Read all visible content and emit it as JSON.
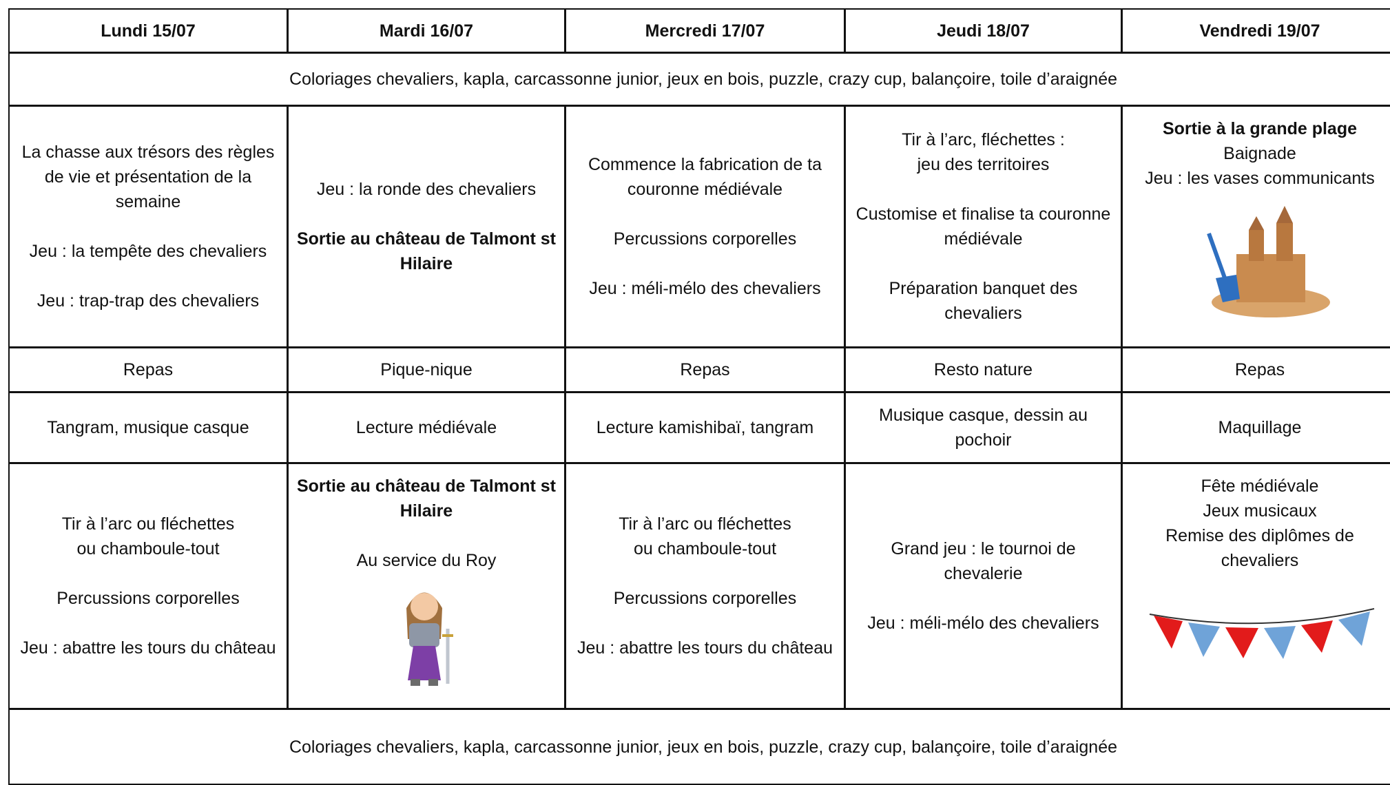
{
  "header": {
    "days": [
      "Lundi 15/07",
      "Mardi 16/07",
      "Mercredi 17/07",
      "Jeudi 18/07",
      "Vendredi 19/07"
    ]
  },
  "table": {
    "rows": [
      [
        [
          [
            "Coloriages chevaliers, kapla, carcassonne junior, jeux en bois, puzzle, crazy cup, balançoire, toile d’araignée"
          ]
        ]
      ],
      [
        [
          [
            "La chasse aux trésors des règles de vie et présentation de la semaine"
          ],
          [
            "Jeu : la tempête des chevaliers"
          ],
          [
            "Jeu : trap-trap des chevaliers"
          ]
        ],
        [
          [
            "Jeu : la ronde des chevaliers"
          ],
          [
            {
              "text": "Sortie au château de Talmont st Hilaire",
              "bold": true
            }
          ]
        ],
        [
          [
            "Commence la fabrication de ta couronne médiévale"
          ],
          [
            "Percussions corporelles"
          ],
          [
            "Jeu : méli-mélo des chevaliers"
          ]
        ],
        [
          [
            "Tir à l’arc, fléchettes :",
            "jeu des territoires"
          ],
          [
            "Customise et finalise ta couronne médiévale"
          ],
          [
            "Préparation banquet des chevaliers"
          ]
        ],
        [
          [
            {
              "text": "Sortie à la grande plage",
              "bold": true
            },
            "Baignade",
            "Jeu : les vases communicants"
          ]
        ]
      ],
      [
        [
          [
            "Repas"
          ]
        ],
        [
          [
            "Pique-nique"
          ]
        ],
        [
          [
            "Repas"
          ]
        ],
        [
          [
            "Resto nature"
          ]
        ],
        [
          [
            "Repas"
          ]
        ]
      ],
      [
        [
          [
            "Tangram, musique casque"
          ]
        ],
        [
          [
            "Lecture médiévale"
          ]
        ],
        [
          [
            "Lecture kamishibaï, tangram"
          ]
        ],
        [
          [
            "Musique casque, dessin au pochoir"
          ]
        ],
        [
          [
            "Maquillage"
          ]
        ]
      ],
      [
        [
          [
            "Tir à l’arc ou fléchettes",
            "ou chamboule-tout"
          ],
          [
            "Percussions corporelles"
          ],
          [
            "Jeu : abattre les tours du château"
          ]
        ],
        [
          [
            {
              "text": "Sortie au château de Talmont st Hilaire",
              "bold": true
            }
          ],
          [
            "Au service du Roy"
          ]
        ],
        [
          [
            "Tir à l’arc ou fléchettes",
            "ou chamboule-tout"
          ],
          [
            "Percussions corporelles"
          ],
          [
            "Jeu : abattre les tours du château"
          ]
        ],
        [
          [
            "Grand jeu : le tournoi de chevalerie"
          ],
          [
            "Jeu : méli-mélo des chevaliers"
          ]
        ],
        [
          [
            "Fête médiévale",
            "Jeux musicaux",
            "Remise des diplômes de chevaliers"
          ]
        ]
      ],
      [
        [
          [
            "Coloriages chevaliers, kapla, carcassonne junior, jeux en bois, puzzle, crazy cup, balançoire, toile d’araignée"
          ]
        ]
      ]
    ]
  }
}
